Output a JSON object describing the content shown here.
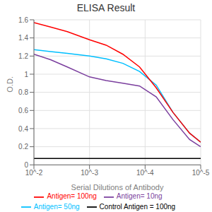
{
  "chart_data": {
    "type": "line",
    "title": "ELISA Result",
    "xlabel": "Serial Dilutions of Antibody",
    "ylabel": "O.D.",
    "xlim": [
      -2,
      -5
    ],
    "xticks": [
      {
        "value": -2,
        "label": "10^-2"
      },
      {
        "value": -3,
        "label": "10^-3"
      },
      {
        "value": -4,
        "label": "10^-4"
      },
      {
        "value": -5,
        "label": "10^-5"
      }
    ],
    "ylim": [
      0,
      1.6
    ],
    "yticks": [
      0,
      0.2,
      0.4,
      0.6,
      0.8,
      1,
      1.2,
      1.4,
      1.6
    ],
    "grid": true,
    "legend": "bottom",
    "series": [
      {
        "name": "Control Antigen = 100ng",
        "color": "#000000",
        "x": [
          -2,
          -2.5,
          -3.0,
          -3.5,
          -4.0,
          -4.5,
          -5.0
        ],
        "values": [
          0.07,
          0.07,
          0.07,
          0.07,
          0.07,
          0.07,
          0.07
        ]
      },
      {
        "name": "Antigen= 10ng",
        "color": "#7B3F9E",
        "x": [
          -2,
          -2.3,
          -2.6,
          -3.0,
          -3.3,
          -3.6,
          -3.9,
          -4.2,
          -4.5,
          -4.8,
          -5.0
        ],
        "values": [
          1.22,
          1.16,
          1.08,
          0.97,
          0.93,
          0.9,
          0.87,
          0.75,
          0.5,
          0.28,
          0.2
        ]
      },
      {
        "name": "Antigen= 50ng",
        "color": "#00BFFF",
        "x": [
          -2,
          -2.3,
          -2.6,
          -3.0,
          -3.3,
          -3.6,
          -3.9,
          -4.2,
          -4.5,
          -4.8,
          -5.0
        ],
        "values": [
          1.27,
          1.25,
          1.23,
          1.2,
          1.17,
          1.12,
          1.03,
          0.88,
          0.58,
          0.35,
          0.25
        ]
      },
      {
        "name": "Antigen= 100ng",
        "color": "#FF0000",
        "x": [
          -2,
          -2.3,
          -2.6,
          -3.0,
          -3.3,
          -3.6,
          -3.9,
          -4.2,
          -4.5,
          -4.8,
          -5.0
        ],
        "values": [
          1.57,
          1.52,
          1.47,
          1.38,
          1.32,
          1.22,
          1.08,
          0.85,
          0.58,
          0.35,
          0.25
        ]
      }
    ]
  }
}
